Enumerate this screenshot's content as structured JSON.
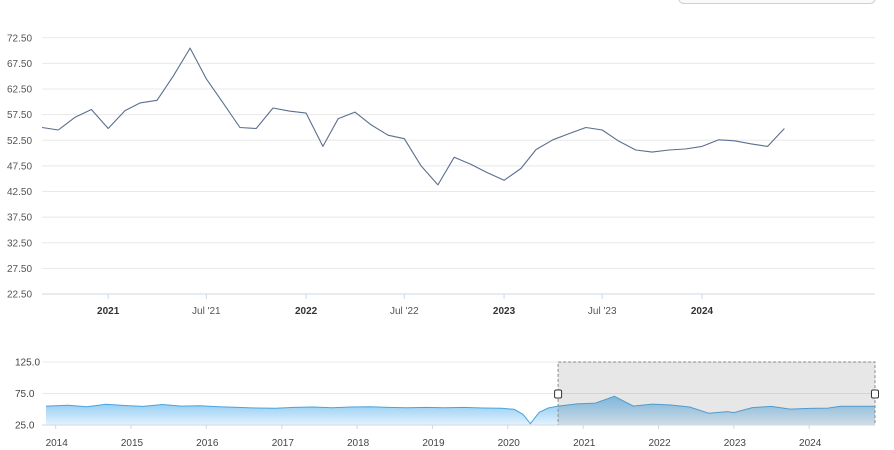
{
  "chart_data": [
    {
      "type": "line",
      "role": "main",
      "y_ticks": [
        "72.50",
        "67.50",
        "62.50",
        "57.50",
        "52.50",
        "47.50",
        "42.50",
        "37.50",
        "32.50",
        "27.50",
        "22.50"
      ],
      "ylim": [
        22.5,
        75.0
      ],
      "x_ticks": [
        {
          "label": "2021",
          "date": "2021-01-01",
          "major": true
        },
        {
          "label": "Jul '21",
          "date": "2021-07-01",
          "major": false
        },
        {
          "label": "2022",
          "date": "2022-01-01",
          "major": true
        },
        {
          "label": "Jul '22",
          "date": "2022-07-01",
          "major": false
        },
        {
          "label": "2023",
          "date": "2023-01-01",
          "major": true
        },
        {
          "label": "Jul '23",
          "date": "2023-07-01",
          "major": false
        },
        {
          "label": "2024",
          "date": "2024-01-01",
          "major": true
        }
      ],
      "xlim": [
        "2020-09-01",
        "2024-11-15"
      ],
      "series": [
        {
          "color": "#5a6f8f",
          "points": [
            [
              "2020-09-01",
              55.0
            ],
            [
              "2020-10-01",
              54.5
            ],
            [
              "2020-11-01",
              57.0
            ],
            [
              "2020-12-01",
              58.5
            ],
            [
              "2021-01-01",
              54.8
            ],
            [
              "2021-02-01",
              58.3
            ],
            [
              "2021-03-01",
              59.8
            ],
            [
              "2021-04-01",
              60.3
            ],
            [
              "2021-05-01",
              65.0
            ],
            [
              "2021-06-01",
              70.5
            ],
            [
              "2021-07-01",
              64.5
            ],
            [
              "2021-08-01",
              59.8
            ],
            [
              "2021-09-01",
              55.0
            ],
            [
              "2021-10-01",
              54.8
            ],
            [
              "2021-11-01",
              58.8
            ],
            [
              "2021-12-01",
              58.2
            ],
            [
              "2022-01-01",
              57.8
            ],
            [
              "2022-02-01",
              51.3
            ],
            [
              "2022-03-01",
              56.7
            ],
            [
              "2022-04-01",
              58.0
            ],
            [
              "2022-05-01",
              55.5
            ],
            [
              "2022-06-01",
              53.5
            ],
            [
              "2022-07-01",
              52.8
            ],
            [
              "2022-08-01",
              47.5
            ],
            [
              "2022-09-01",
              43.8
            ],
            [
              "2022-10-01",
              49.2
            ],
            [
              "2022-11-01",
              47.8
            ],
            [
              "2022-12-01",
              46.2
            ],
            [
              "2023-01-01",
              44.7
            ],
            [
              "2023-02-01",
              47.0
            ],
            [
              "2023-03-01",
              50.7
            ],
            [
              "2023-04-01",
              52.6
            ],
            [
              "2023-05-01",
              53.8
            ],
            [
              "2023-06-01",
              55.0
            ],
            [
              "2023-07-01",
              54.5
            ],
            [
              "2023-08-01",
              52.3
            ],
            [
              "2023-09-01",
              50.6
            ],
            [
              "2023-10-01",
              50.2
            ],
            [
              "2023-11-01",
              50.6
            ],
            [
              "2023-12-01",
              50.8
            ],
            [
              "2024-01-01",
              51.3
            ],
            [
              "2024-02-01",
              52.6
            ],
            [
              "2024-03-01",
              52.4
            ],
            [
              "2024-04-01",
              51.8
            ],
            [
              "2024-05-01",
              51.3
            ],
            [
              "2024-06-01",
              54.8
            ]
          ]
        }
      ],
      "grid": true,
      "legend": "none"
    },
    {
      "type": "area",
      "role": "navigator",
      "y_ticks": [
        "125.0",
        "75.0",
        "25.0"
      ],
      "ylim": [
        25.0,
        125.0
      ],
      "x_ticks": [
        {
          "label": "2014",
          "date": "2014-01-01"
        },
        {
          "label": "2015",
          "date": "2015-01-01"
        },
        {
          "label": "2016",
          "date": "2016-01-01"
        },
        {
          "label": "2017",
          "date": "2017-01-01"
        },
        {
          "label": "2018",
          "date": "2018-01-01"
        },
        {
          "label": "2019",
          "date": "2019-01-01"
        },
        {
          "label": "2020",
          "date": "2020-01-01"
        },
        {
          "label": "2021",
          "date": "2021-01-01"
        },
        {
          "label": "2022",
          "date": "2022-01-01"
        },
        {
          "label": "2023",
          "date": "2023-01-01"
        },
        {
          "label": "2024",
          "date": "2024-01-01"
        }
      ],
      "xlim": [
        "2013-11-15",
        "2024-11-15"
      ],
      "selected_range": [
        "2020-09-01",
        "2024-11-15"
      ],
      "series": [
        {
          "color": "#4aa3df",
          "points": [
            [
              "2013-11-15",
              55.0
            ],
            [
              "2014-03-01",
              56.5
            ],
            [
              "2014-06-01",
              54.0
            ],
            [
              "2014-09-01",
              58.0
            ],
            [
              "2014-12-01",
              56.0
            ],
            [
              "2015-03-01",
              54.5
            ],
            [
              "2015-06-01",
              57.5
            ],
            [
              "2015-09-01",
              55.0
            ],
            [
              "2015-12-01",
              55.5
            ],
            [
              "2016-03-01",
              54.0
            ],
            [
              "2016-06-01",
              53.0
            ],
            [
              "2016-09-01",
              52.0
            ],
            [
              "2016-12-01",
              51.5
            ],
            [
              "2017-03-01",
              53.0
            ],
            [
              "2017-06-01",
              53.5
            ],
            [
              "2017-09-01",
              52.5
            ],
            [
              "2017-12-01",
              53.5
            ],
            [
              "2018-03-01",
              54.0
            ],
            [
              "2018-06-01",
              53.0
            ],
            [
              "2018-09-01",
              52.5
            ],
            [
              "2018-12-01",
              53.0
            ],
            [
              "2019-03-01",
              52.5
            ],
            [
              "2019-06-01",
              53.0
            ],
            [
              "2019-09-01",
              52.0
            ],
            [
              "2019-12-01",
              51.5
            ],
            [
              "2020-02-01",
              50.0
            ],
            [
              "2020-03-15",
              42.0
            ],
            [
              "2020-04-20",
              27.0
            ],
            [
              "2020-06-01",
              45.0
            ],
            [
              "2020-07-15",
              52.0
            ],
            [
              "2020-09-01",
              55.0
            ],
            [
              "2020-12-01",
              58.5
            ],
            [
              "2021-03-01",
              59.8
            ],
            [
              "2021-06-01",
              70.5
            ],
            [
              "2021-09-01",
              55.0
            ],
            [
              "2021-12-01",
              58.2
            ],
            [
              "2022-03-01",
              56.7
            ],
            [
              "2022-06-01",
              53.5
            ],
            [
              "2022-09-01",
              43.8
            ],
            [
              "2022-12-01",
              46.2
            ],
            [
              "2023-01-01",
              44.7
            ],
            [
              "2023-04-01",
              52.6
            ],
            [
              "2023-07-01",
              54.5
            ],
            [
              "2023-10-01",
              50.2
            ],
            [
              "2024-01-01",
              51.3
            ],
            [
              "2024-04-01",
              51.8
            ],
            [
              "2024-06-01",
              54.8
            ],
            [
              "2024-11-15",
              54.8
            ]
          ]
        }
      ],
      "grid": true
    }
  ]
}
